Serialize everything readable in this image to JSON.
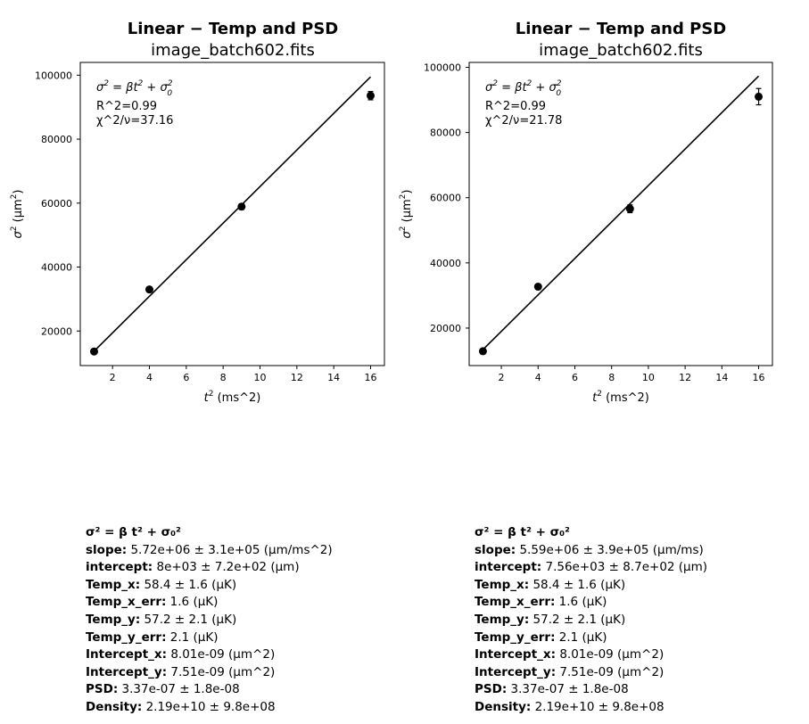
{
  "chart_data": [
    {
      "type": "scatter",
      "title": "Linear − Temp and PSD",
      "subtitle": "image_batch602.fits",
      "xlabel_base": "t",
      "xlabel_sup": "2",
      "xlabel_unit": "(ms^2)",
      "ylabel_base": "σ",
      "ylabel_sup": "2",
      "ylabel_unit": "(μm",
      "ylabel_unit_sup": "2",
      "ylabel_close": ")",
      "xlim": [
        0.25,
        16.75
      ],
      "ylim": [
        9200,
        104000
      ],
      "xticks": [
        2,
        4,
        6,
        8,
        10,
        12,
        14,
        16
      ],
      "yticks": [
        20000,
        40000,
        60000,
        80000,
        100000
      ],
      "series": [
        {
          "name": "data",
          "x": [
            1,
            4,
            9,
            16
          ],
          "y": [
            13600,
            33000,
            58900,
            93600
          ],
          "yerr": [
            600,
            800,
            900,
            1300
          ]
        },
        {
          "name": "fit",
          "x": [
            1,
            16
          ],
          "y": [
            13700,
            99500
          ]
        }
      ],
      "annotations": {
        "formula": {
          "a": "σ",
          "b": "2",
          "c": " = βt",
          "d": "2",
          "e": " + σ",
          "f": "2",
          "g": "0"
        },
        "r2": "R^2=0.99",
        "chi2": "χ^2/ν=37.16"
      }
    },
    {
      "type": "scatter",
      "title": "Linear − Temp and PSD",
      "subtitle": "image_batch602.fits",
      "xlabel_base": "t",
      "xlabel_sup": "2",
      "xlabel_unit": "(ms^2)",
      "ylabel_base": "σ",
      "ylabel_sup": "2",
      "ylabel_unit": "(μm",
      "ylabel_unit_sup": "2",
      "ylabel_close": ")",
      "xlim": [
        0.25,
        16.75
      ],
      "ylim": [
        8500,
        101500
      ],
      "xticks": [
        2,
        4,
        6,
        8,
        10,
        12,
        14,
        16
      ],
      "yticks": [
        20000,
        40000,
        60000,
        80000,
        100000
      ],
      "series": [
        {
          "name": "data",
          "x": [
            1,
            4,
            9,
            16
          ],
          "y": [
            12900,
            32700,
            56600,
            91000
          ],
          "yerr": [
            600,
            800,
            1200,
            2500
          ]
        },
        {
          "name": "fit",
          "x": [
            1,
            16
          ],
          "y": [
            13400,
            97300
          ]
        }
      ],
      "annotations": {
        "formula": {
          "a": "σ",
          "b": "2",
          "c": " = βt",
          "d": "2",
          "e": " + σ",
          "f": "2",
          "g": "0"
        },
        "r2": "R^2=0.99",
        "chi2": "χ^2/ν=21.78"
      }
    }
  ],
  "info_left": [
    {
      "label": "σ² = β t² + σ₀²",
      "value": ""
    },
    {
      "label": "slope:",
      "value": " 5.72e+06 ± 3.1e+05 (μm/ms^2)"
    },
    {
      "label": "intercept:",
      "value": " 8e+03 ± 7.2e+02 (μm)"
    },
    {
      "label": "Temp_x:",
      "value": " 58.4 ± 1.6 (μK)"
    },
    {
      "label": "Temp_x_err:",
      "value": " 1.6 (μK)"
    },
    {
      "label": "Temp_y:",
      "value": " 57.2 ± 2.1 (μK)"
    },
    {
      "label": "Temp_y_err:",
      "value": " 2.1 (μK)"
    },
    {
      "label": "Intercept_x:",
      "value": " 8.01e-09 (μm^2)"
    },
    {
      "label": "Intercept_y:",
      "value": " 7.51e-09 (μm^2)"
    },
    {
      "label": "PSD:",
      "value": " 3.37e-07 ± 1.8e-08"
    },
    {
      "label": "Density:",
      "value": " 2.19e+10 ± 9.8e+08"
    }
  ],
  "info_right": [
    {
      "label": "σ² = β t² + σ₀²",
      "value": ""
    },
    {
      "label": "slope:",
      "value": " 5.59e+06 ± 3.9e+05 (μm/ms)"
    },
    {
      "label": "intercept:",
      "value": " 7.56e+03 ± 8.7e+02 (μm)"
    },
    {
      "label": "Temp_x:",
      "value": " 58.4 ± 1.6 (μK)"
    },
    {
      "label": "Temp_x_err:",
      "value": " 1.6 (μK)"
    },
    {
      "label": "Temp_y:",
      "value": " 57.2 ± 2.1 (μK)"
    },
    {
      "label": "Temp_y_err:",
      "value": " 2.1 (μK)"
    },
    {
      "label": "Intercept_x:",
      "value": " 8.01e-09 (μm^2)"
    },
    {
      "label": "Intercept_y:",
      "value": " 7.51e-09 (μm^2)"
    },
    {
      "label": "PSD:",
      "value": " 3.37e-07 ± 1.8e-08"
    },
    {
      "label": "Density:",
      "value": " 2.19e+10 ± 9.8e+08"
    }
  ]
}
